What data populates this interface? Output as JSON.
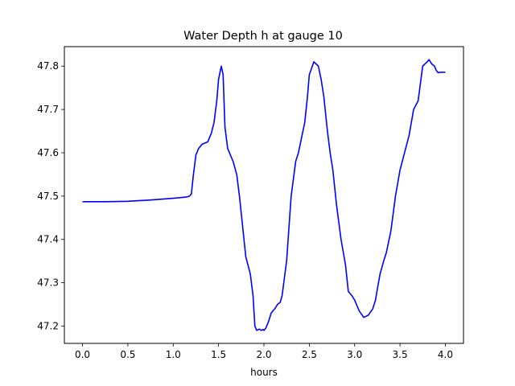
{
  "chart_data": {
    "type": "line",
    "title": "Water Depth h at gauge 10",
    "xlabel": "hours",
    "ylabel": "",
    "xlim": [
      -0.2,
      4.2
    ],
    "ylim": [
      47.16,
      47.845
    ],
    "xticks": [
      0.0,
      0.5,
      1.0,
      1.5,
      2.0,
      2.5,
      3.0,
      3.5,
      4.0
    ],
    "xtick_labels": [
      "0.0",
      "0.5",
      "1.0",
      "1.5",
      "2.0",
      "2.5",
      "3.0",
      "3.5",
      "4.0"
    ],
    "yticks": [
      47.2,
      47.3,
      47.4,
      47.5,
      47.6,
      47.7,
      47.8
    ],
    "ytick_labels": [
      "47.2",
      "47.3",
      "47.4",
      "47.5",
      "47.6",
      "47.7",
      "47.8"
    ],
    "grid": false,
    "series": [
      {
        "color": "#0000ff",
        "x": [
          0.0,
          0.25,
          0.5,
          0.75,
          1.0,
          1.15,
          1.18,
          1.2,
          1.22,
          1.25,
          1.28,
          1.32,
          1.38,
          1.42,
          1.45,
          1.48,
          1.5,
          1.53,
          1.55,
          1.57,
          1.6,
          1.63,
          1.66,
          1.7,
          1.73,
          1.76,
          1.8,
          1.85,
          1.88,
          1.9,
          1.92,
          1.95,
          1.97,
          1.99,
          2.0,
          2.02,
          2.05,
          2.08,
          2.12,
          2.15,
          2.18,
          2.2,
          2.25,
          2.3,
          2.35,
          2.38,
          2.4,
          2.42,
          2.45,
          2.48,
          2.5,
          2.55,
          2.6,
          2.63,
          2.66,
          2.7,
          2.73,
          2.76,
          2.8,
          2.85,
          2.9,
          2.93,
          2.97,
          3.0,
          3.05,
          3.1,
          3.15,
          3.2,
          3.23,
          3.25,
          3.28,
          3.32,
          3.35,
          3.4,
          3.45,
          3.5,
          3.55,
          3.6,
          3.65,
          3.7,
          3.75,
          3.8,
          3.82,
          3.85,
          3.88,
          3.9,
          3.92,
          3.95,
          3.98,
          4.0
        ],
        "y": [
          47.487,
          47.487,
          47.488,
          47.491,
          47.495,
          47.498,
          47.5,
          47.505,
          47.545,
          47.595,
          47.61,
          47.62,
          47.625,
          47.645,
          47.67,
          47.72,
          47.77,
          47.8,
          47.78,
          47.66,
          47.61,
          47.595,
          47.58,
          47.55,
          47.5,
          47.44,
          47.36,
          47.32,
          47.27,
          47.2,
          47.19,
          47.193,
          47.19,
          47.192,
          47.19,
          47.195,
          47.21,
          47.23,
          47.24,
          47.25,
          47.255,
          47.27,
          47.35,
          47.5,
          47.58,
          47.6,
          47.62,
          47.64,
          47.67,
          47.73,
          47.78,
          47.81,
          47.8,
          47.77,
          47.73,
          47.65,
          47.6,
          47.56,
          47.48,
          47.4,
          47.34,
          47.28,
          47.27,
          47.26,
          47.235,
          47.22,
          47.225,
          47.24,
          47.26,
          47.285,
          47.32,
          47.35,
          47.37,
          47.42,
          47.5,
          47.56,
          47.6,
          47.64,
          47.7,
          47.72,
          47.8,
          47.81,
          47.815,
          47.805,
          47.8,
          47.79,
          47.785,
          47.786,
          47.786,
          47.786
        ]
      }
    ]
  }
}
